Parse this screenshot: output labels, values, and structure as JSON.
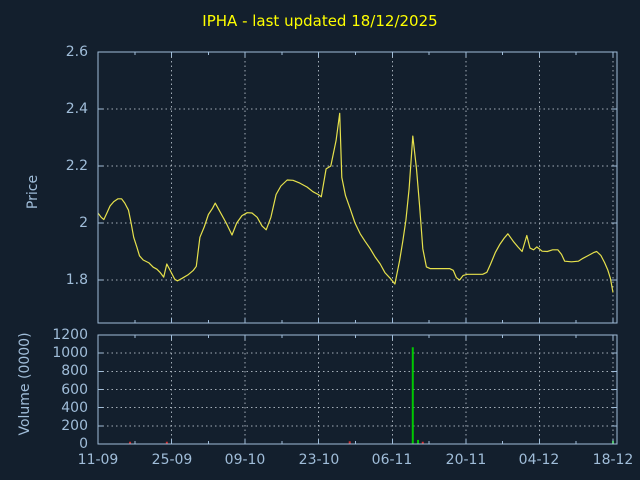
{
  "title": "IPHA - last updated 18/12/2025",
  "colors": {
    "background": "#131f2d",
    "frame": "#a0bdd9",
    "axis_text": "#a0bdd9",
    "title_text": "#ffff00",
    "grid": "#a3adb8",
    "price_line": "#e6e14c",
    "volume_up": "#00c800",
    "volume_down": "#d22f2f"
  },
  "chart_data": {
    "type": "line+bar",
    "title": "IPHA - last updated 18/12/2025",
    "legend": "none",
    "grid": "dotted",
    "x_axis": {
      "labels": [
        "11-09",
        "25-09",
        "09-10",
        "23-10",
        "06-11",
        "20-11",
        "04-12",
        "18-12"
      ],
      "tick_days": [
        0,
        14,
        28,
        42,
        56,
        70,
        84,
        98
      ],
      "minor_tick_days": [
        7,
        21,
        35,
        49,
        63,
        77,
        91
      ],
      "day_range": [
        0,
        98
      ]
    },
    "price": {
      "type": "line",
      "ylabel": "Price",
      "yticks": [
        "2.6",
        "2.4",
        "2.2",
        "2",
        "1.8"
      ],
      "ylim": [
        1.65,
        2.6
      ],
      "points": [
        [
          0,
          2.035
        ],
        [
          0.6,
          2.02
        ],
        [
          1.1,
          2.012
        ],
        [
          1.7,
          2.035
        ],
        [
          2.3,
          2.06
        ],
        [
          3,
          2.075
        ],
        [
          3.8,
          2.085
        ],
        [
          4.5,
          2.085
        ],
        [
          5.1,
          2.07
        ],
        [
          5.8,
          2.045
        ],
        [
          6.3,
          2.0
        ],
        [
          6.8,
          1.95
        ],
        [
          7.4,
          1.915
        ],
        [
          7.9,
          1.885
        ],
        [
          8.6,
          1.87
        ],
        [
          9.7,
          1.86
        ],
        [
          10.5,
          1.845
        ],
        [
          11.2,
          1.838
        ],
        [
          11.8,
          1.827
        ],
        [
          12.5,
          1.81
        ],
        [
          13.1,
          1.856
        ],
        [
          13.9,
          1.828
        ],
        [
          14.6,
          1.803
        ],
        [
          15.1,
          1.797
        ],
        [
          16,
          1.806
        ],
        [
          17.1,
          1.818
        ],
        [
          18.1,
          1.833
        ],
        [
          18.7,
          1.848
        ],
        [
          19.4,
          1.95
        ],
        [
          20.2,
          1.986
        ],
        [
          21,
          2.03
        ],
        [
          21.8,
          2.052
        ],
        [
          22.3,
          2.07
        ],
        [
          23.2,
          2.04
        ],
        [
          24.4,
          2.0
        ],
        [
          25.5,
          1.958
        ],
        [
          26.4,
          2.0
        ],
        [
          27.4,
          2.026
        ],
        [
          28.4,
          2.036
        ],
        [
          29.3,
          2.035
        ],
        [
          30.3,
          2.02
        ],
        [
          31.2,
          1.99
        ],
        [
          32,
          1.976
        ],
        [
          32.9,
          2.02
        ],
        [
          33.9,
          2.1
        ],
        [
          34.8,
          2.13
        ],
        [
          36,
          2.151
        ],
        [
          37.1,
          2.15
        ],
        [
          38.4,
          2.14
        ],
        [
          39.8,
          2.126
        ],
        [
          40.9,
          2.11
        ],
        [
          41.9,
          2.1
        ],
        [
          42.5,
          2.092
        ],
        [
          43.4,
          2.19
        ],
        [
          44.3,
          2.2
        ],
        [
          45.3,
          2.29
        ],
        [
          46,
          2.385
        ],
        [
          46.4,
          2.16
        ],
        [
          47.1,
          2.096
        ],
        [
          48,
          2.05
        ],
        [
          48.9,
          2.0
        ],
        [
          49.9,
          1.962
        ],
        [
          50.8,
          1.936
        ],
        [
          51.8,
          1.91
        ],
        [
          52.7,
          1.882
        ],
        [
          53.7,
          1.856
        ],
        [
          54.6,
          1.826
        ],
        [
          55.6,
          1.806
        ],
        [
          56.5,
          1.786
        ],
        [
          57.4,
          1.868
        ],
        [
          58,
          1.936
        ],
        [
          58.6,
          2.01
        ],
        [
          59.2,
          2.12
        ],
        [
          59.9,
          2.305
        ],
        [
          60.6,
          2.19
        ],
        [
          61.2,
          2.06
        ],
        [
          61.8,
          1.91
        ],
        [
          62.5,
          1.846
        ],
        [
          63.2,
          1.84
        ],
        [
          66.9,
          1.84
        ],
        [
          67.6,
          1.834
        ],
        [
          68.2,
          1.808
        ],
        [
          68.8,
          1.8
        ],
        [
          69.5,
          1.816
        ],
        [
          70.3,
          1.82
        ],
        [
          73.2,
          1.82
        ],
        [
          74,
          1.827
        ],
        [
          74.7,
          1.856
        ],
        [
          75.6,
          1.896
        ],
        [
          76.5,
          1.926
        ],
        [
          77.3,
          1.947
        ],
        [
          78,
          1.962
        ],
        [
          79,
          1.936
        ],
        [
          79.9,
          1.916
        ],
        [
          80.7,
          1.9
        ],
        [
          81.6,
          1.956
        ],
        [
          82.2,
          1.912
        ],
        [
          82.9,
          1.906
        ],
        [
          83.5,
          1.916
        ],
        [
          84.5,
          1.901
        ],
        [
          85.5,
          1.9
        ],
        [
          86.5,
          1.906
        ],
        [
          87.5,
          1.906
        ],
        [
          88.2,
          1.89
        ],
        [
          88.8,
          1.866
        ],
        [
          90.1,
          1.864
        ],
        [
          91.4,
          1.866
        ],
        [
          92.3,
          1.876
        ],
        [
          93.3,
          1.886
        ],
        [
          94.3,
          1.896
        ],
        [
          94.9,
          1.9
        ],
        [
          95.7,
          1.886
        ],
        [
          96.4,
          1.861
        ],
        [
          97,
          1.836
        ],
        [
          97.5,
          1.806
        ],
        [
          98,
          1.756
        ]
      ]
    },
    "volume": {
      "type": "bar",
      "ylabel": "Volume (0000)",
      "yticks": [
        "1200",
        "1000",
        "800",
        "600",
        "400",
        "200",
        "0"
      ],
      "ylim": [
        0,
        1200
      ],
      "bars": [
        {
          "day": 6.1,
          "value": 25,
          "color": "#d22f2f"
        },
        {
          "day": 13.1,
          "value": 25,
          "color": "#d22f2f"
        },
        {
          "day": 47.9,
          "value": 30,
          "color": "#d22f2f"
        },
        {
          "day": 59.9,
          "value": 1065,
          "color": "#00c800"
        },
        {
          "day": 60.9,
          "value": 45,
          "color": "#00c800"
        },
        {
          "day": 61.8,
          "value": 25,
          "color": "#d22f2f"
        },
        {
          "day": 98,
          "value": 35,
          "color": "#00c800"
        }
      ]
    }
  }
}
